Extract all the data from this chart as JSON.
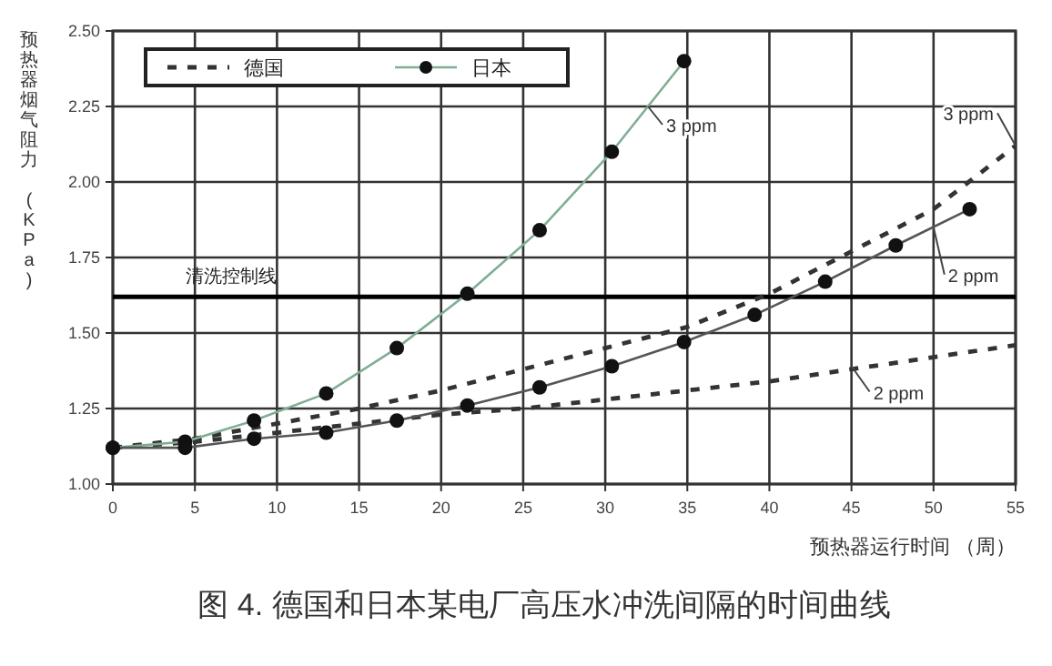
{
  "chart_data": {
    "type": "line",
    "xlabel": "预热器运行时间 （周）",
    "ylabel": "预热器烟气阻力 (KPa)",
    "annotations": [
      {
        "text": "3 ppm",
        "x": 32.6,
        "y": 2.25
      },
      {
        "text": "3 ppm",
        "x": 55,
        "y": 2.12
      },
      {
        "text": "2 ppm",
        "x": 50,
        "y": 1.85
      },
      {
        "text": "2 ppm",
        "x": 45,
        "y": 1.39
      },
      "图 4. 德国和日本某电厂高压水冲洗间隔的时间曲线"
    ],
    "xlim": [
      0,
      55
    ],
    "ylim": [
      1,
      2.5
    ],
    "xticks": [
      0,
      5,
      10,
      15,
      20,
      25,
      30,
      35,
      40,
      45,
      50,
      55
    ],
    "yticks": [
      {
        "value": 1,
        "label": "1.00"
      },
      {
        "value": 1.25,
        "label": "1.25"
      },
      {
        "value": 1.5,
        "label": "1.50"
      },
      {
        "value": 1.75,
        "label": "1.75"
      },
      {
        "value": 2,
        "label": "2.00"
      },
      {
        "value": 2.25,
        "label": "2.25"
      },
      {
        "value": 2.5,
        "label": "2.50"
      }
    ],
    "grid": true,
    "legend": "top left",
    "ref_lines": [
      {
        "axis": "y",
        "value": 1.62,
        "label": "清洗控制线",
        "color": "#000000"
      }
    ],
    "series": [
      {
        "name": "德国",
        "color": "#333333",
        "line_style": "dashed",
        "marker": "none",
        "x": [
          0,
          5,
          10,
          15,
          20,
          25,
          30,
          35,
          40,
          45,
          50,
          55
        ],
        "values": [
          1.12,
          1.15,
          1.2,
          1.25,
          1.31,
          1.38,
          1.45,
          1.52,
          1.63,
          1.77,
          1.91,
          2.12
        ]
      },
      {
        "color": "#333333",
        "line_style": "dashed",
        "marker": "none",
        "x": [
          0,
          5,
          10,
          15,
          20,
          25,
          30,
          35,
          40,
          45,
          50,
          55
        ],
        "values": [
          1.12,
          1.14,
          1.17,
          1.2,
          1.23,
          1.25,
          1.28,
          1.31,
          1.34,
          1.38,
          1.42,
          1.46
        ]
      },
      {
        "name": "日本",
        "color": "#7fae93",
        "line_style": "solid",
        "marker": "circle",
        "x": [
          0,
          4.4,
          8.6,
          13,
          17.3,
          21.6,
          26,
          30.4,
          34.8
        ],
        "values": [
          1.12,
          1.14,
          1.21,
          1.3,
          1.45,
          1.63,
          1.84,
          2.1,
          2.4
        ]
      },
      {
        "color": "#555555",
        "line_style": "solid",
        "marker": "circle",
        "x": [
          0,
          4.4,
          8.6,
          13,
          17.3,
          21.6,
          26,
          30.4,
          34.8,
          39.1,
          43.4,
          47.7,
          52.2
        ],
        "values": [
          1.12,
          1.12,
          1.15,
          1.17,
          1.21,
          1.26,
          1.32,
          1.39,
          1.47,
          1.56,
          1.67,
          1.79,
          1.91
        ]
      }
    ]
  }
}
